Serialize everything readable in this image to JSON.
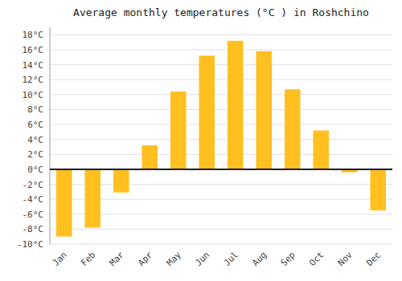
{
  "chart_data": {
    "type": "bar",
    "title": "Average monthly temperatures (°C ) in Roshchino",
    "categories": [
      "Jan",
      "Feb",
      "Mar",
      "Apr",
      "May",
      "Jun",
      "Jul",
      "Aug",
      "Sep",
      "Oct",
      "Nov",
      "Dec"
    ],
    "values": [
      -9,
      -7.8,
      -3.1,
      3.2,
      10.4,
      15.2,
      17.2,
      15.8,
      10.7,
      5.2,
      -0.4,
      -5.5
    ],
    "color": "#FFC020",
    "ylim": [
      -10,
      19
    ],
    "yticks": [
      {
        "value": -10,
        "label": "-10°C"
      },
      {
        "value": -8,
        "label": "-8°C"
      },
      {
        "value": -6,
        "label": "-6°C"
      },
      {
        "value": -4,
        "label": "-4°C"
      },
      {
        "value": -2,
        "label": "-2°C"
      },
      {
        "value": 0,
        "label": "0°C"
      },
      {
        "value": 2,
        "label": "2°C"
      },
      {
        "value": 4,
        "label": "4°C"
      },
      {
        "value": 6,
        "label": "6°C"
      },
      {
        "value": 8,
        "label": "8°C"
      },
      {
        "value": 10,
        "label": "10°C"
      },
      {
        "value": 12,
        "label": "12°C"
      },
      {
        "value": 14,
        "label": "14°C"
      },
      {
        "value": 16,
        "label": "16°C"
      },
      {
        "value": 18,
        "label": "18°C"
      }
    ],
    "grid": true
  }
}
